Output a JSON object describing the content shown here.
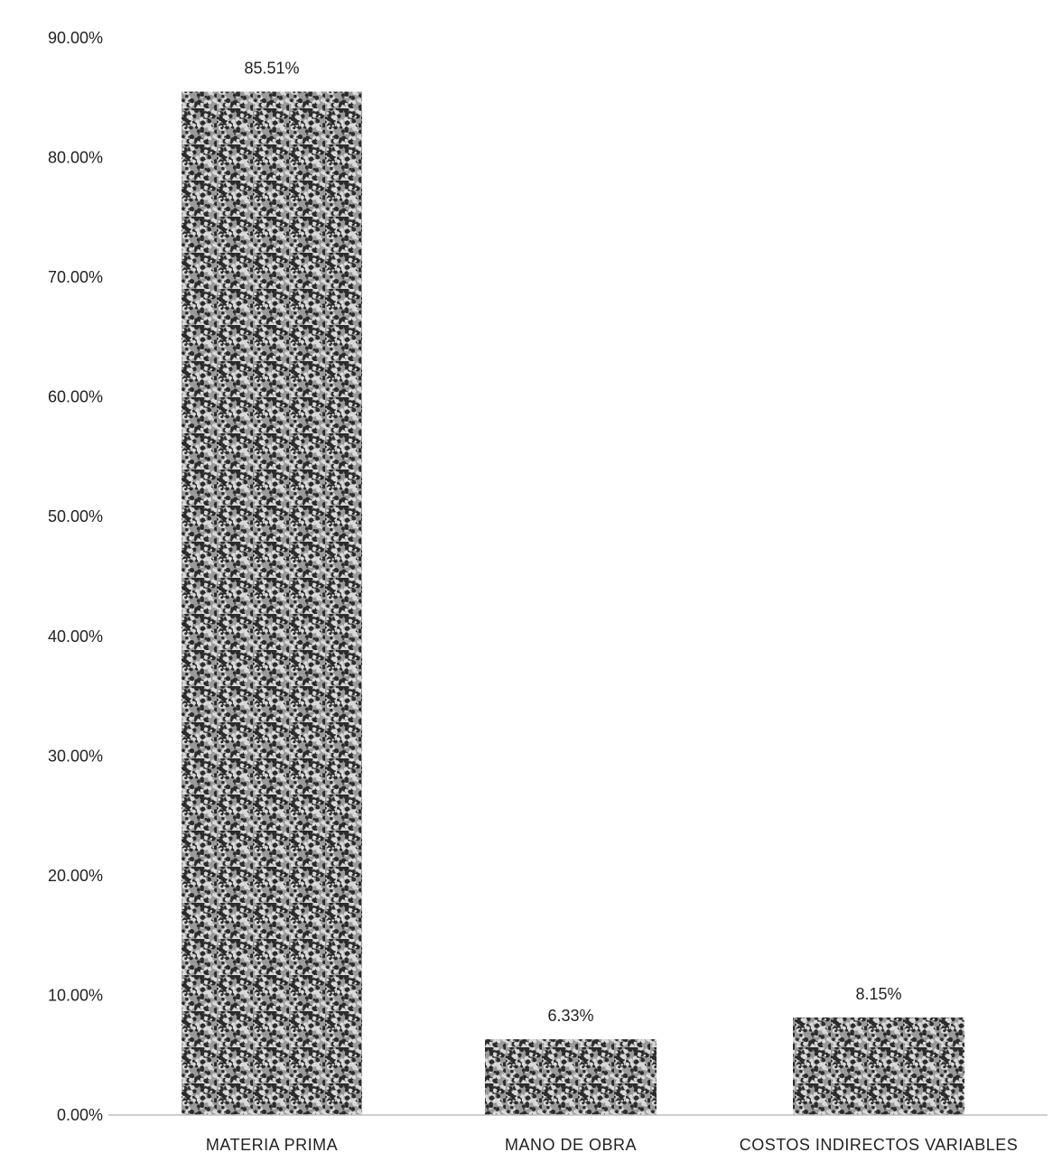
{
  "chart_data": {
    "type": "bar",
    "title": "",
    "xlabel": "",
    "ylabel": "",
    "categories": [
      "MATERIA PRIMA",
      "MANO DE OBRA",
      "COSTOS INDIRECTOS VARIABLES"
    ],
    "values": [
      85.51,
      6.33,
      8.15
    ],
    "data_labels": [
      "85.51%",
      "6.33%",
      "8.15%"
    ],
    "ylim": [
      0,
      90
    ],
    "yticks": [
      0,
      10,
      20,
      30,
      40,
      50,
      60,
      70,
      80,
      90
    ],
    "ytick_labels": [
      "0.00%",
      "10.00%",
      "20.00%",
      "30.00%",
      "40.00%",
      "50.00%",
      "60.00%",
      "70.00%",
      "80.00%",
      "90.00%"
    ],
    "grid": false,
    "legend": "none",
    "bar_fill": "speckled gray/black texture"
  },
  "colors": {
    "bar_dark": "#2b2b2b",
    "bar_light": "#d9d9d9",
    "axis": "#bfbfbf",
    "text": "#222222"
  }
}
